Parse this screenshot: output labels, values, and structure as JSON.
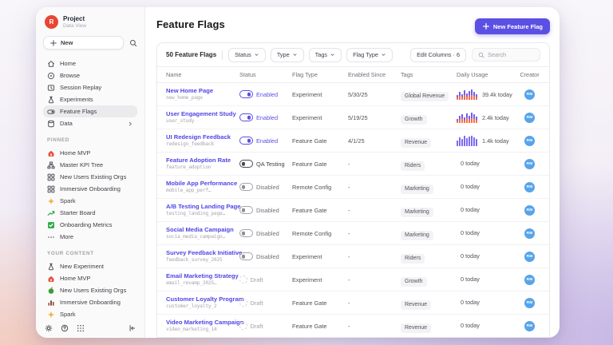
{
  "colors": {
    "accent": "#5b50e3",
    "logo_red": "#e84633",
    "avatar_blue": "#57a4ea",
    "spark_purple": "#6f61ea",
    "spark_orange": "#f46d4d"
  },
  "sidebar": {
    "project": {
      "logo_letter": "R",
      "name": "Project",
      "subtitle": "Data View"
    },
    "new_button": "New",
    "nav": [
      {
        "label": "Home",
        "icon": "home"
      },
      {
        "label": "Browse",
        "icon": "browse"
      },
      {
        "label": "Session Replay",
        "icon": "session-replay"
      },
      {
        "label": "Experiments",
        "icon": "flask"
      },
      {
        "label": "Feature Flags",
        "icon": "feature-flag-toggle",
        "selected": true
      },
      {
        "label": "Data",
        "icon": "database",
        "chevron": true
      }
    ],
    "pinned_label": "PINNED",
    "pinned": [
      {
        "label": "Home MVP",
        "icon": "home-red"
      },
      {
        "label": "Master KPI Tree",
        "icon": "kpi-tree"
      },
      {
        "label": "New Users Existing Orgs",
        "icon": "grid4"
      },
      {
        "label": "Immersive Onboarding",
        "icon": "grid4"
      },
      {
        "label": "Spark",
        "icon": "spark"
      },
      {
        "label": "Starter Board",
        "icon": "trend"
      },
      {
        "label": "Onboarding Metrics",
        "icon": "check-green"
      },
      {
        "label": "More",
        "icon": "more"
      }
    ],
    "your_content_label": "YOUR CONTENT",
    "your_content": [
      {
        "label": "New Experiment",
        "icon": "flask"
      },
      {
        "label": "Home MVP",
        "icon": "home-red"
      },
      {
        "label": "New Users Existing Orgs",
        "icon": "green-dot"
      },
      {
        "label": "Immersive Onboarding",
        "icon": "bar-chart"
      },
      {
        "label": "Spark",
        "icon": "spark"
      }
    ],
    "bottom_icons": [
      "gear",
      "help",
      "apps",
      "collapse"
    ]
  },
  "main": {
    "title": "Feature Flags",
    "new_flag_button": "New Feature Flag",
    "toolbar": {
      "count": "50 Feature Flags",
      "filters": [
        "Status",
        "Type",
        "Tags",
        "Flag Type"
      ],
      "edit_columns": "Edit Columns · 6",
      "search_placeholder": "Search"
    },
    "table": {
      "columns": [
        "Name",
        "Status",
        "Flag Type",
        "Enabled Since",
        "Tags",
        "Daily Usage",
        "Creator"
      ],
      "rows": [
        {
          "name": "New Home Page",
          "key": "new_home_page",
          "status": "Enabled",
          "status_type": "enabled",
          "flag_type": "Experiment",
          "enabled_since": "5/30/25",
          "tag": "Global Revenue",
          "usage": "39.4k today",
          "spark": {
            "style": "dual",
            "heights": [
              6,
              10,
              7,
              12,
              8,
              11,
              13,
              10,
              7
            ]
          },
          "creator": "RM"
        },
        {
          "name": "User Engagement Study",
          "key": "user_study",
          "status": "Enabled",
          "status_type": "enabled",
          "flag_type": "Experiment",
          "enabled_since": "5/19/25",
          "tag": "Growth",
          "usage": "2.4k today",
          "spark": {
            "style": "dual",
            "heights": [
              5,
              9,
              11,
              7,
              12,
              9,
              13,
              11,
              8
            ]
          },
          "creator": "RM"
        },
        {
          "name": "UI Redesign Feedback",
          "key": "redesign_feedback",
          "status": "Enabled",
          "status_type": "enabled",
          "flag_type": "Feature Gate",
          "enabled_since": "4/1/25",
          "tag": "Revenue",
          "usage": "1.4k today",
          "spark": {
            "style": "solid",
            "heights": [
              7,
              11,
              9,
              13,
              10,
              12,
              13,
              11,
              9
            ]
          },
          "creator": "RM"
        },
        {
          "name": "Feature Adoption Rate",
          "key": "feature_adoption",
          "status": "QA Testing",
          "status_type": "qa",
          "flag_type": "Feature Gate",
          "enabled_since": "-",
          "tag": "Riders",
          "usage": "0 today",
          "spark": null,
          "creator": "RM"
        },
        {
          "name": "Mobile App Performance",
          "key": "mobile_app_perf…",
          "status": "Disabled",
          "status_type": "disabled",
          "flag_type": "Remote Config",
          "enabled_since": "-",
          "tag": "Marketing",
          "usage": "0 today",
          "spark": null,
          "creator": "RM"
        },
        {
          "name": "A/B Testing Landing Page",
          "key": "testing_landing_page…",
          "status": "Disabled",
          "status_type": "disabled",
          "flag_type": "Feature Gate",
          "enabled_since": "-",
          "tag": "Marketing",
          "usage": "0 today",
          "spark": null,
          "creator": "RM"
        },
        {
          "name": "Social Media Campaign",
          "key": "socia_media_campaign…",
          "status": "Disabled",
          "status_type": "disabled",
          "flag_type": "Remote Config",
          "enabled_since": "-",
          "tag": "Marketing",
          "usage": "0 today",
          "spark": null,
          "creator": "RM"
        },
        {
          "name": "Survey Feedback Initiative",
          "key": "feedback_survey_2025",
          "status": "Disabled",
          "status_type": "disabled",
          "flag_type": "Experiment",
          "enabled_since": "-",
          "tag": "Riders",
          "usage": "0 today",
          "spark": null,
          "creator": "RM"
        },
        {
          "name": "Email Marketing Strategy",
          "key": "email_revamp_2025…",
          "status": "Draft",
          "status_type": "draft",
          "flag_type": "Experiment",
          "enabled_since": "-",
          "tag": "Growth",
          "usage": "0 today",
          "spark": null,
          "creator": "RM"
        },
        {
          "name": "Customer Loyalty Program",
          "key": "customer_loyalty_2",
          "status": "Draft",
          "status_type": "draft",
          "flag_type": "Feature Gate",
          "enabled_since": "-",
          "tag": "Revenue",
          "usage": "0 today",
          "spark": null,
          "creator": "RM"
        },
        {
          "name": "Video Marketing Campaign",
          "key": "video_marketing_14",
          "status": "Draft",
          "status_type": "draft",
          "flag_type": "Feature Gate",
          "enabled_since": "-",
          "tag": "Revenue",
          "usage": "0 today",
          "spark": null,
          "creator": "RM"
        }
      ]
    }
  }
}
